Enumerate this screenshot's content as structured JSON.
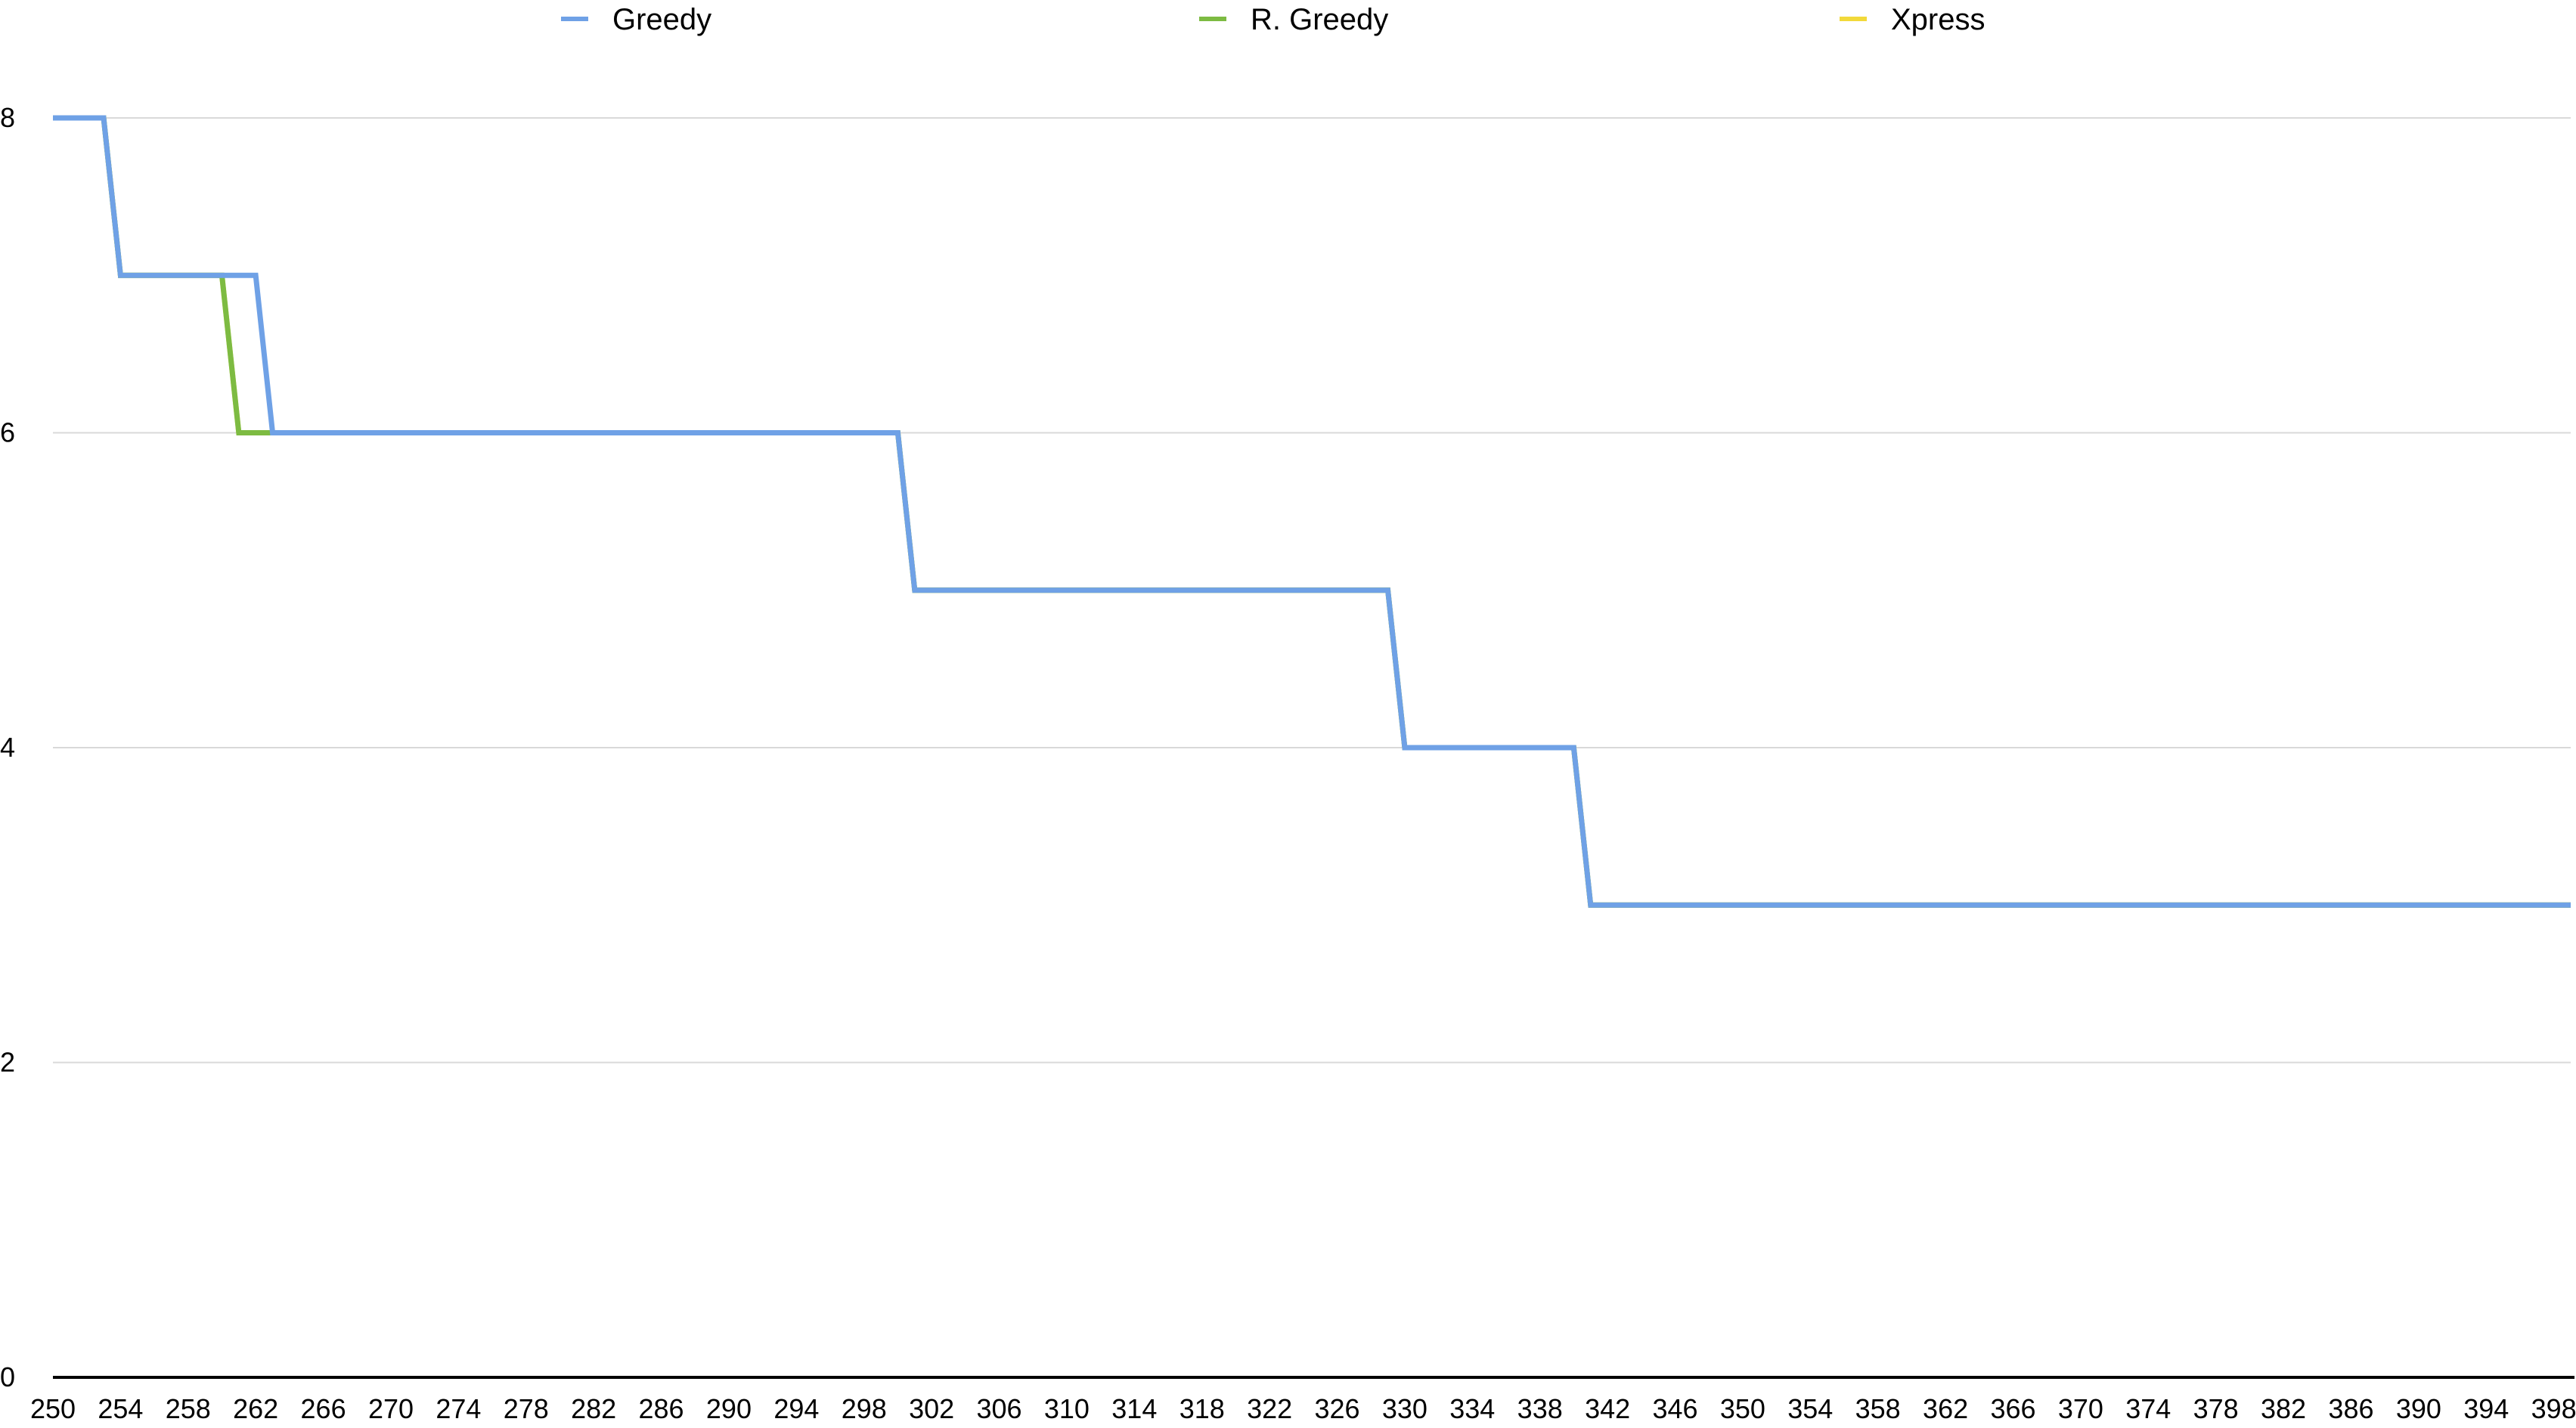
{
  "chart_data": {
    "type": "line",
    "title": "",
    "xlabel": "",
    "ylabel": "",
    "xlim": [
      250,
      399
    ],
    "ylim": [
      0,
      8
    ],
    "y_ticks": [
      0,
      2,
      4,
      6,
      8
    ],
    "y_tick_labels": [
      "0",
      "2",
      "4",
      "6",
      "8"
    ],
    "x_tick_labels": [
      "250",
      "254",
      "258",
      "262",
      "266",
      "270",
      "274",
      "278",
      "282",
      "286",
      "290",
      "294",
      "298",
      "302",
      "306",
      "310",
      "314",
      "318",
      "322",
      "326",
      "330",
      "334",
      "338",
      "342",
      "346",
      "350",
      "354",
      "358",
      "362",
      "366",
      "370",
      "374",
      "378",
      "382",
      "386",
      "390",
      "394",
      "398"
    ],
    "x_ticks": [
      250,
      254,
      258,
      262,
      266,
      270,
      274,
      278,
      282,
      286,
      290,
      294,
      298,
      302,
      306,
      310,
      314,
      318,
      322,
      326,
      330,
      334,
      338,
      342,
      346,
      350,
      354,
      358,
      362,
      366,
      370,
      374,
      378,
      382,
      386,
      390,
      394,
      398
    ],
    "grid": true,
    "legend_position": "top",
    "series": [
      {
        "name": "Xpress",
        "color": "#f2d93a",
        "x": [
          250,
          253,
          254,
          260,
          261,
          262,
          263,
          300,
          301,
          329,
          330,
          340,
          341,
          399
        ],
        "y": [
          8,
          8,
          7,
          7,
          6,
          6,
          6,
          6,
          5,
          5,
          4,
          4,
          3,
          3
        ]
      },
      {
        "name": "R. Greedy",
        "color": "#7dbb42",
        "x": [
          250,
          253,
          254,
          260,
          261,
          262,
          263,
          300,
          301,
          329,
          330,
          340,
          341,
          399
        ],
        "y": [
          8,
          8,
          7,
          7,
          6,
          6,
          6,
          6,
          5,
          5,
          4,
          4,
          3,
          3
        ]
      },
      {
        "name": "Greedy",
        "color": "#6fa1e6",
        "x": [
          250,
          253,
          254,
          262,
          263,
          300,
          301,
          329,
          330,
          340,
          341,
          399
        ],
        "y": [
          8,
          8,
          7,
          7,
          6,
          6,
          5,
          5,
          4,
          4,
          3,
          3
        ]
      }
    ],
    "legend_order": [
      "Greedy",
      "R. Greedy",
      "Xpress"
    ]
  }
}
